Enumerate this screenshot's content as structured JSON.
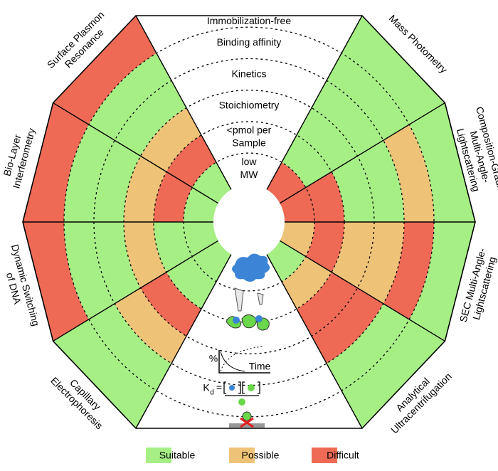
{
  "criteria": [
    {
      "lines": [
        "Immobilization-free"
      ]
    },
    {
      "lines": [
        "Binding affinity"
      ]
    },
    {
      "lines": [
        "Kinetics"
      ]
    },
    {
      "lines": [
        "Stoichiometry"
      ]
    },
    {
      "lines": [
        "<pmol per",
        "Sample"
      ]
    },
    {
      "lines": [
        "low",
        "MW"
      ]
    }
  ],
  "techniques": [
    {
      "lines": [
        "Mass Photometry"
      ],
      "ratings": [
        0,
        0,
        0,
        0,
        0,
        2
      ]
    },
    {
      "lines": [
        "Composition-Gradient",
        "Multi-Angle-",
        "Lightscattering"
      ],
      "ratings": [
        0,
        1,
        0,
        0,
        2,
        2
      ]
    },
    {
      "lines": [
        "SEC Multi-Angle-",
        "Lightscattering"
      ],
      "ratings": [
        0,
        2,
        1,
        1,
        2,
        1
      ]
    },
    {
      "lines": [
        "Analytical",
        "Ultracentrifugation"
      ],
      "ratings": [
        0,
        0,
        2,
        2,
        1,
        0
      ]
    },
    {
      "lines": [
        "Capillary",
        "Electrophoresis"
      ],
      "ratings": [
        0,
        0,
        1,
        2,
        0,
        0
      ]
    },
    {
      "lines": [
        "Dynamic Switching",
        "of DNA"
      ],
      "ratings": [
        2,
        0,
        0,
        1,
        0,
        0
      ]
    },
    {
      "lines": [
        "Bio-Layer",
        "Interferometry"
      ],
      "ratings": [
        2,
        0,
        0,
        1,
        2,
        0
      ]
    },
    {
      "lines": [
        "Surface Plasmon",
        "Resonance"
      ],
      "ratings": [
        2,
        0,
        0,
        1,
        2,
        0
      ]
    }
  ],
  "legend": [
    {
      "label": "Suitable",
      "color": "#a6ef85"
    },
    {
      "label": "Possible",
      "color": "#efc377"
    },
    {
      "label": "Difficult",
      "color": "#ee6a55"
    }
  ],
  "icons": {
    "percent": "%",
    "time": "Time",
    "kd": "K",
    "kd_sub": "d",
    "equals": "="
  }
}
